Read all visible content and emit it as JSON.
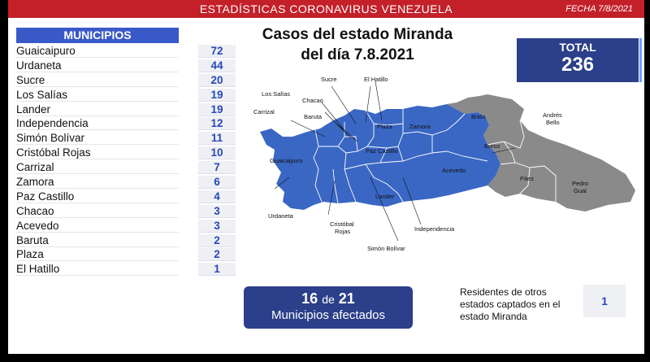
{
  "header": {
    "title": "ESTADÍSTICAS CORONAVIRUS VENEZUELA",
    "date": "FECHA 7/8/2021"
  },
  "municipios": {
    "heading": "MUNICIPIOS",
    "rows": [
      {
        "name": "Guaicaipuro",
        "value": "72"
      },
      {
        "name": "Urdaneta",
        "value": "44"
      },
      {
        "name": "Sucre",
        "value": "20"
      },
      {
        "name": "Los Salías",
        "value": "19"
      },
      {
        "name": "Lander",
        "value": "19"
      },
      {
        "name": "Independencia",
        "value": "12"
      },
      {
        "name": "Simón Bolívar",
        "value": "11"
      },
      {
        "name": "Cristóbal Rojas",
        "value": "10"
      },
      {
        "name": "Carrizal",
        "value": "7"
      },
      {
        "name": "Zamora",
        "value": "6"
      },
      {
        "name": "Paz Castillo",
        "value": "4"
      },
      {
        "name": "Chacao",
        "value": "3"
      },
      {
        "name": "Acevedo",
        "value": "3"
      },
      {
        "name": "Baruta",
        "value": "2"
      },
      {
        "name": "Plaza",
        "value": "2"
      },
      {
        "name": "El Hatillo",
        "value": "1"
      }
    ]
  },
  "headline": {
    "line1": "Casos del estado Miranda",
    "line2": "del día 7.8.2021"
  },
  "total": {
    "label": "TOTAL",
    "value": "236"
  },
  "map": {
    "affected_color": "#3a67c4",
    "unaffected_color": "#8a8a8a",
    "labels": {
      "sucre": "Sucre",
      "el_hatillo": "El Hatillo",
      "los_salias": "Los Salías",
      "chacao": "Chacao",
      "carrizal": "Carrizal",
      "baruta": "Baruta",
      "plaza": "Plaza",
      "zamora": "Zamora",
      "guaicaipuro": "Guaicaipuro",
      "paz_castillo": "Paz Castillo",
      "acevedo": "Acevedo",
      "lander": "Lander",
      "urdaneta": "Urdaneta",
      "cristobal_rojas_1": "Cristóbal",
      "cristobal_rojas_2": "Rojas",
      "independencia": "Independencia",
      "simon_bolivar": "Simón Bolívar",
      "brion": "Brión",
      "andres_bello_1": "Andrés",
      "andres_bello_2": "Bello",
      "buroz": "Buroz",
      "paez": "Páez",
      "pedro_gual_1": "Pedro",
      "pedro_gual_2": "Gual"
    }
  },
  "affected": {
    "count": "16",
    "de": "de",
    "total": "21",
    "label": "Municipios afectados"
  },
  "residents": {
    "text": "Residentes de otros estados captados en el estado Miranda",
    "value": "1"
  }
}
